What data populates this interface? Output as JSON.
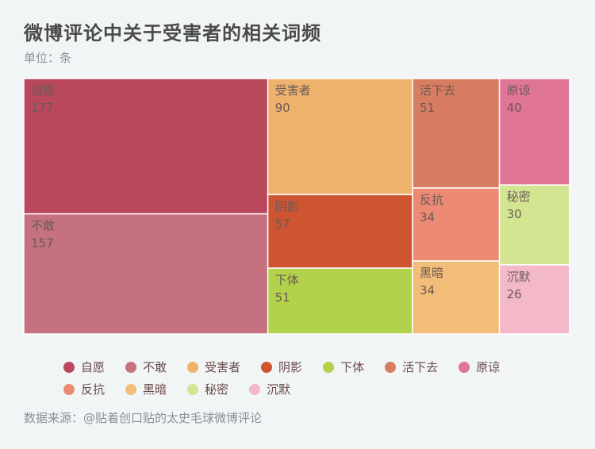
{
  "chart_data": {
    "type": "treemap",
    "title": "微博评论中关于受害者的相关词频",
    "subtitle": "单位：条",
    "source": "数据来源：@贴着创口贴的太史毛球微博评论",
    "items": [
      {
        "name": "自愿",
        "value": 177,
        "color": "#b9485d"
      },
      {
        "name": "不敢",
        "value": 157,
        "color": "#c5717f"
      },
      {
        "name": "受害者",
        "value": 90,
        "color": "#efb26d"
      },
      {
        "name": "阴影",
        "value": 57,
        "color": "#cf5431"
      },
      {
        "name": "下体",
        "value": 51,
        "color": "#b2d24b"
      },
      {
        "name": "活下去",
        "value": 51,
        "color": "#d97d62"
      },
      {
        "name": "原谅",
        "value": 40,
        "color": "#e17596"
      },
      {
        "name": "反抗",
        "value": 34,
        "color": "#ec8a74"
      },
      {
        "name": "黑暗",
        "value": 34,
        "color": "#f2bd78"
      },
      {
        "name": "秘密",
        "value": 30,
        "color": "#d4e592"
      },
      {
        "name": "沉默",
        "value": 26,
        "color": "#f4b9c8"
      }
    ]
  }
}
